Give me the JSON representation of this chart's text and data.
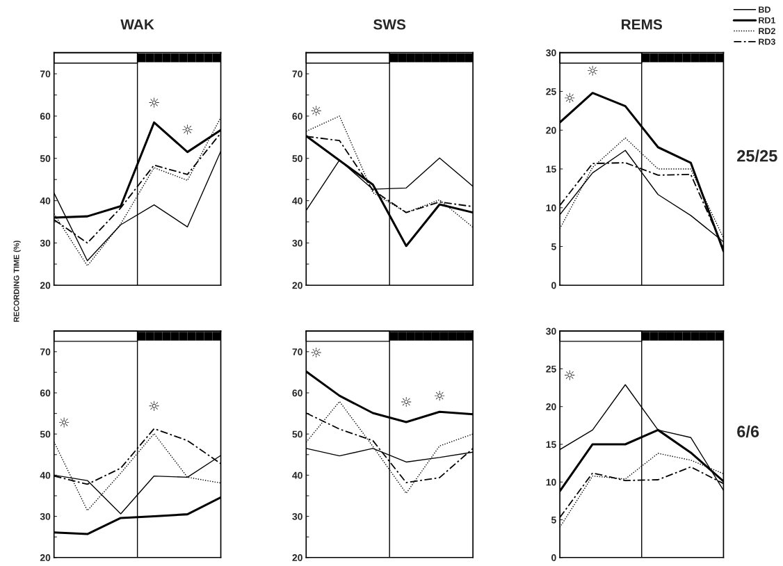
{
  "chart_data": [
    {
      "type": "line",
      "title": "WAK",
      "categories": [
        null,
        null,
        null,
        null,
        null,
        null
      ],
      "ylim": [
        20,
        75
      ],
      "yticks": [
        20,
        {
          "value": 25,
          "label": null
        },
        30,
        {
          "value": 35,
          "label": null
        },
        40,
        {
          "value": 45,
          "label": null
        },
        50,
        {
          "value": 55,
          "label": null
        },
        60,
        {
          "value": 65,
          "label": null
        },
        70
      ],
      "tick_labels": "y",
      "series": [
        {
          "color": "#000000",
          "line_style": "solid",
          "values": [
            41.8,
            25.8,
            34.3,
            39,
            33.8,
            51.7
          ]
        },
        {
          "color": "#000000",
          "line_style": "solid",
          "values": [
            36,
            36.3,
            38.7,
            58.5,
            51.5,
            56.7
          ]
        },
        {
          "color": "#000000",
          "line_style": "dotted",
          "values": [
            36.9,
            24.6,
            34.5,
            47.8,
            44.8,
            59.7
          ]
        },
        {
          "color": "#000000",
          "line_style": "dashed",
          "values": [
            35.5,
            30,
            38.3,
            48.4,
            46.2,
            56
          ]
        }
      ],
      "annotations": [
        "☼",
        "☼"
      ]
    },
    {
      "type": "line",
      "title": "SWS",
      "categories": [
        null,
        null,
        null,
        null,
        null,
        null
      ],
      "ylim": [
        20,
        75
      ],
      "yticks": [
        20,
        {
          "value": 25,
          "label": null
        },
        30,
        {
          "value": 35,
          "label": null
        },
        40,
        {
          "value": 45,
          "label": null
        },
        50,
        {
          "value": 55,
          "label": null
        },
        60,
        {
          "value": 65,
          "label": null
        },
        70
      ],
      "tick_labels": "y",
      "series": [
        {
          "color": "#000000",
          "line_style": "solid",
          "values": [
            37.7,
            49.6,
            42.7,
            43,
            50.1,
            43.4
          ]
        },
        {
          "color": "#000000",
          "line_style": "solid",
          "values": [
            55.3,
            49.5,
            43.8,
            29.3,
            39.1,
            37.2
          ]
        },
        {
          "color": "#000000",
          "line_style": "dotted",
          "values": [
            56.4,
            60,
            41.9,
            37.2,
            40.2,
            33.7
          ]
        },
        {
          "color": "#000000",
          "line_style": "dashed",
          "values": [
            55.2,
            54.2,
            42.5,
            37.2,
            39.7,
            38.6
          ]
        }
      ],
      "annotations": [
        "☼"
      ]
    },
    {
      "type": "line",
      "title": "REMS",
      "categories": [
        null,
        null,
        null,
        null,
        null,
        null
      ],
      "ylim": [
        0,
        30
      ],
      "yticks": [
        0,
        5,
        10,
        15,
        20,
        25,
        30
      ],
      "tick_labels": "y",
      "legend": "top right",
      "series": [
        {
          "name": "BD",
          "color": "#000000",
          "line_style": "solid",
          "values": [
            9.1,
            14.5,
            17.4,
            11.7,
            9,
            5.6
          ]
        },
        {
          "name": "RD1",
          "color": "#000000",
          "line_style": "solid",
          "values": [
            21,
            24.8,
            23.1,
            17.8,
            15.8,
            4.4
          ]
        },
        {
          "name": "RD2",
          "color": "#000000",
          "line_style": "dotted",
          "values": [
            7.3,
            15.2,
            19,
            15,
            15,
            6.1
          ]
        },
        {
          "name": "RD3",
          "color": "#000000",
          "line_style": "dashed",
          "values": [
            10.3,
            15.7,
            15.8,
            14.2,
            14.3,
            4.8
          ]
        }
      ],
      "annotations": [
        "☼",
        "☼",
        "25/25"
      ]
    },
    {
      "type": "line",
      "ylabel": "RECORDING TIME (%)",
      "categories": [
        null,
        null,
        null,
        null,
        null,
        null
      ],
      "ylim": [
        20,
        75
      ],
      "yticks": [
        20,
        {
          "value": 25,
          "label": null
        },
        30,
        {
          "value": 35,
          "label": null
        },
        40,
        {
          "value": 45,
          "label": null
        },
        50,
        {
          "value": 55,
          "label": null
        },
        60,
        {
          "value": 65,
          "label": null
        },
        70
      ],
      "tick_labels": "y",
      "series": [
        {
          "color": "#000000",
          "line_style": "solid",
          "values": [
            40,
            38.7,
            30.6,
            39.8,
            39.5,
            44.8
          ]
        },
        {
          "color": "#000000",
          "line_style": "solid",
          "values": [
            26.1,
            25.7,
            29.6,
            30,
            30.5,
            34.6
          ]
        },
        {
          "color": "#000000",
          "line_style": "dotted",
          "values": [
            48.1,
            31.4,
            40.5,
            50.1,
            39.5,
            38.1
          ]
        },
        {
          "color": "#000000",
          "line_style": "dashed",
          "values": [
            39.8,
            37.8,
            41.7,
            51.3,
            48.4,
            42.8
          ]
        }
      ],
      "annotations": [
        "☼",
        "☼"
      ]
    },
    {
      "type": "line",
      "categories": [
        null,
        null,
        null,
        null,
        null,
        null
      ],
      "ylim": [
        20,
        75
      ],
      "yticks": [
        20,
        {
          "value": 25,
          "label": null
        },
        30,
        {
          "value": 35,
          "label": null
        },
        40,
        {
          "value": 45,
          "label": null
        },
        50,
        {
          "value": 55,
          "label": null
        },
        60,
        {
          "value": 65,
          "label": null
        },
        70
      ],
      "tick_labels": "y",
      "series": [
        {
          "color": "#000000",
          "line_style": "solid",
          "values": [
            46.5,
            44.7,
            46.5,
            43.2,
            44.3,
            45.6
          ]
        },
        {
          "color": "#000000",
          "line_style": "solid",
          "values": [
            65.2,
            59.3,
            55.1,
            52.9,
            55.4,
            54.8
          ]
        },
        {
          "color": "#000000",
          "line_style": "dotted",
          "values": [
            48,
            57.9,
            47,
            35.6,
            47.1,
            50
          ]
        },
        {
          "color": "#000000",
          "line_style": "dashed",
          "values": [
            55.1,
            51.2,
            48.4,
            38.2,
            39.4,
            46.5
          ]
        }
      ],
      "annotations": [
        "☼",
        "☼",
        "☼"
      ]
    },
    {
      "type": "line",
      "categories": [
        null,
        null,
        null,
        null,
        null,
        null
      ],
      "ylim": [
        0,
        30
      ],
      "yticks": [
        0,
        5,
        10,
        15,
        20,
        25,
        30
      ],
      "tick_labels": "y",
      "series": [
        {
          "color": "#000000",
          "line_style": "solid",
          "values": [
            14.3,
            16.9,
            22.9,
            16.9,
            15.9,
            8.9
          ]
        },
        {
          "color": "#000000",
          "line_style": "solid",
          "values": [
            8.8,
            15,
            15,
            16.9,
            13.9,
            10.1
          ]
        },
        {
          "color": "#000000",
          "line_style": "dotted",
          "values": [
            4,
            10.8,
            10.4,
            13.8,
            12.9,
            11.1
          ]
        },
        {
          "color": "#000000",
          "line_style": "dashed",
          "values": [
            5.3,
            11.2,
            10.2,
            10.3,
            12,
            9.8
          ]
        }
      ],
      "annotations": [
        "☼",
        "6/6"
      ]
    }
  ]
}
